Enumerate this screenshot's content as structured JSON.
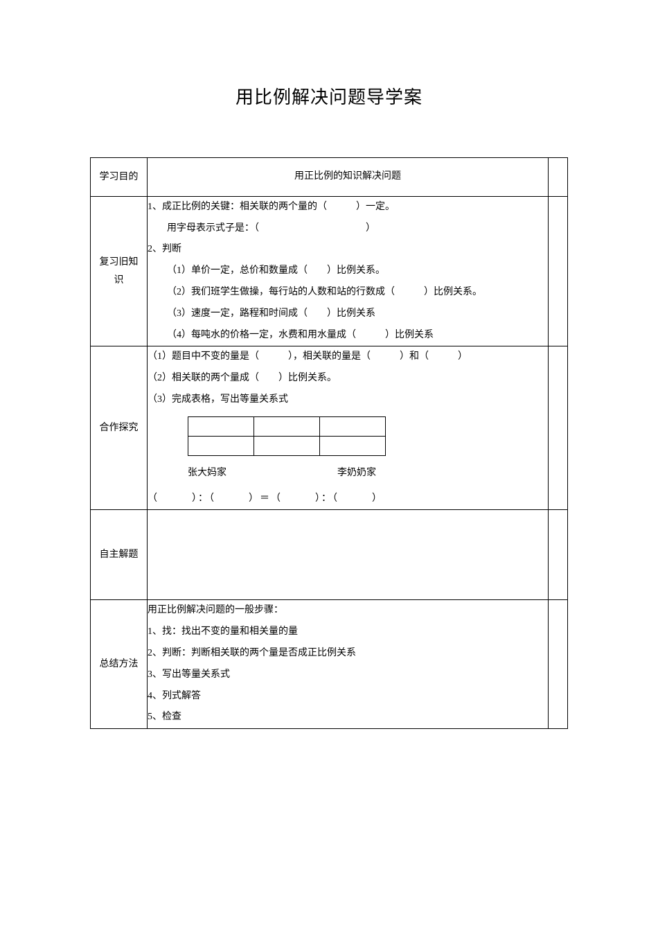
{
  "title": "用比例解决问题导学案",
  "rows": {
    "objective": {
      "label": "学习目的",
      "content": "用正比例的知识解决问题"
    },
    "review": {
      "label": "复习旧知识",
      "label_line1": "复习旧知",
      "label_line2": "识",
      "line1": "1、成正比例的关键：相关联的两个量的（　　　）一定。",
      "line2": "用字母表示式子是：（　　　　　　　　　　　）",
      "line3": "2、判断",
      "line4": "（1）单价一定，总价和数量成（　　）比例关系。",
      "line5": "（2）我们班学生做操，每行站的人数和站的行数成（　　　）比例关系。",
      "line6": "（3）速度一定，路程和时间成（　　）比例关系",
      "line7": "（4）每吨水的价格一定，水费和用水量成（　　　）比例关系"
    },
    "explore": {
      "label": "合作探究",
      "line1": "（1）题目中不变的量是（　　　），相关联的量是（　　　）和（　　　）",
      "line2": "（2）相关联的两个量成（　　）比例关系。",
      "line3": "（3）完成表格，写出等量关系式",
      "person1": "张大妈家",
      "person2": "李奶奶家",
      "equation": "（　　　）：（　　　）＝（　　　）：（　　　）"
    },
    "selfsolve": {
      "label": "自主解题"
    },
    "method": {
      "label": "总结方法",
      "line1": "用正比例解决问题的一般步骤：",
      "line2": "1、找：找出不变的量和相关量的量",
      "line3": "2、判断：判断相关联的两个量是否成正比例关系",
      "line4": "3、写出等量关系式",
      "line5": "4、列式解答",
      "line6": "5、检查"
    }
  }
}
